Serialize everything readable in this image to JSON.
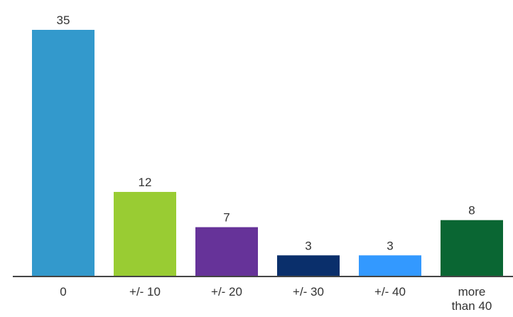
{
  "chart_data": {
    "type": "bar",
    "categories": [
      "0",
      "+/- 10",
      "+/- 20",
      "+/- 30",
      "+/- 40",
      "more than 40"
    ],
    "category_lines": [
      [
        "0"
      ],
      [
        "+/- 10"
      ],
      [
        "+/- 20"
      ],
      [
        "+/- 30"
      ],
      [
        "+/- 40"
      ],
      [
        "more",
        "than 40"
      ]
    ],
    "values": [
      35,
      12,
      7,
      3,
      3,
      8
    ],
    "value_labels": [
      "35",
      "12",
      "7",
      "3",
      "3",
      "8"
    ],
    "colors": [
      "#3399cc",
      "#99cc33",
      "#663399",
      "#0a2f6b",
      "#3399ff",
      "#0a6633"
    ],
    "ylim": [
      0,
      35
    ],
    "grid": false,
    "legend": "none"
  }
}
